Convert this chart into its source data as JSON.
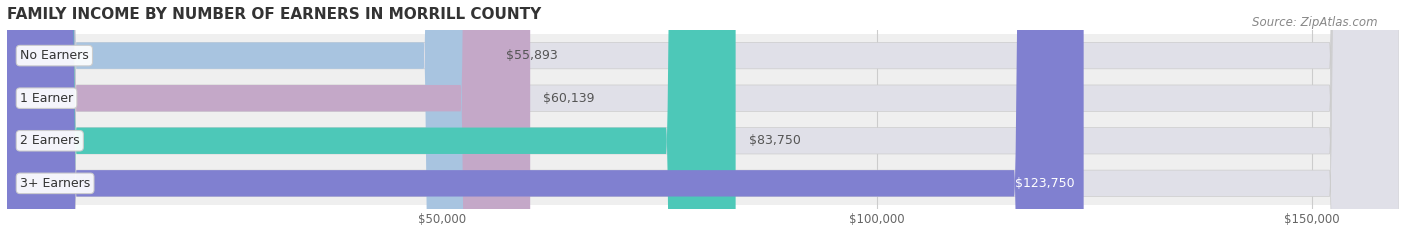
{
  "title": "FAMILY INCOME BY NUMBER OF EARNERS IN MORRILL COUNTY",
  "source": "Source: ZipAtlas.com",
  "categories": [
    "No Earners",
    "1 Earner",
    "2 Earners",
    "3+ Earners"
  ],
  "values": [
    55893,
    60139,
    83750,
    123750
  ],
  "labels": [
    "$55,893",
    "$60,139",
    "$83,750",
    "$123,750"
  ],
  "bar_colors": [
    "#a8c4e0",
    "#c4a8c8",
    "#4dc8b8",
    "#8080d0"
  ],
  "bar_bg_color": "#ebebeb",
  "row_bg_colors": [
    "#f5f5f5",
    "#f0f0f0"
  ],
  "x_min": 0,
  "x_max": 160000,
  "x_ticks": [
    50000,
    100000,
    150000
  ],
  "x_tick_labels": [
    "$50,000",
    "$100,000",
    "$150,000"
  ],
  "title_fontsize": 11,
  "label_fontsize": 9,
  "tick_fontsize": 8.5,
  "source_fontsize": 8.5,
  "background_color": "#ffffff"
}
